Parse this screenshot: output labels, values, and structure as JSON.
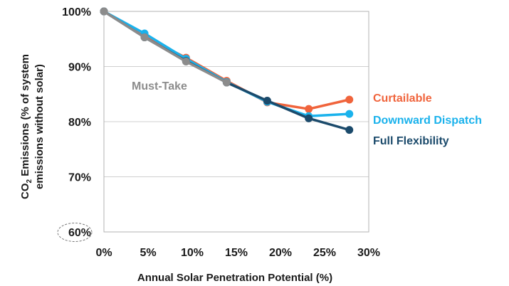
{
  "chart_data": {
    "type": "line",
    "xlabel": "Annual Solar Penetration Potential (%)",
    "ylabel_line1": "CO₂ Emissions (% of system",
    "ylabel_line2": "emissions without solar)",
    "xlim": [
      0,
      30
    ],
    "ylim": [
      60,
      100
    ],
    "x_ticks": [
      0,
      5,
      10,
      15,
      20,
      25,
      30
    ],
    "x_tick_labels": [
      "0%",
      "5%",
      "10%",
      "15%",
      "20%",
      "25%",
      "30%"
    ],
    "y_ticks": [
      60,
      70,
      80,
      90,
      100
    ],
    "y_tick_labels": [
      "60%",
      "70%",
      "80%",
      "90%",
      "100%"
    ],
    "circled_tick": "60%",
    "grid": "horizontal",
    "series": [
      {
        "name": "Curtailable",
        "color": "#f0643c",
        "x": [
          0,
          4.6,
          9.3,
          13.9,
          18.5,
          23.2,
          27.8
        ],
        "y": [
          100,
          95.4,
          91.6,
          87.4,
          83.5,
          82.3,
          84.0
        ]
      },
      {
        "name": "Downward Dispatch",
        "color": "#1ab2ec",
        "x": [
          0,
          4.6,
          9.3,
          13.9,
          18.5,
          23.2,
          27.8
        ],
        "y": [
          100,
          96.0,
          91.4,
          87.2,
          83.6,
          81.0,
          81.4
        ]
      },
      {
        "name": "Full Flexibility",
        "color": "#1b4a6b",
        "x": [
          0,
          4.6,
          9.3,
          13.9,
          18.5,
          23.2,
          27.8
        ],
        "y": [
          100,
          95.3,
          91.0,
          87.1,
          83.8,
          80.6,
          78.5
        ]
      },
      {
        "name": "Must-Take",
        "color": "#8c8c8c",
        "x": [
          0,
          4.6,
          9.3,
          13.9
        ],
        "y": [
          100,
          95.3,
          90.9,
          87.1
        ]
      }
    ]
  }
}
